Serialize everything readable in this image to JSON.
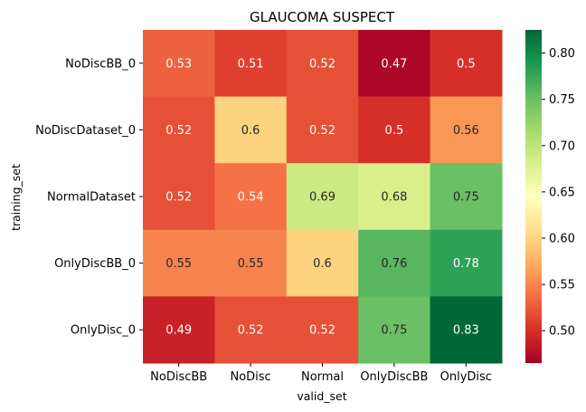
{
  "chart_data": {
    "type": "heatmap",
    "title": "GLAUCOMA SUSPECT",
    "xlabel": "valid_set",
    "ylabel": "training_set",
    "x_categories": [
      "NoDiscBB",
      "NoDisc",
      "Normal",
      "OnlyDiscBB",
      "OnlyDisc"
    ],
    "y_categories": [
      "NoDiscBB_0",
      "NoDiscDataset_0",
      "NormalDataset",
      "OnlyDiscBB_0",
      "OnlyDisc_0"
    ],
    "values": [
      [
        0.53,
        0.51,
        0.52,
        0.47,
        0.5
      ],
      [
        0.52,
        0.6,
        0.52,
        0.5,
        0.56
      ],
      [
        0.52,
        0.54,
        0.69,
        0.68,
        0.75
      ],
      [
        0.55,
        0.55,
        0.6,
        0.76,
        0.78
      ],
      [
        0.49,
        0.52,
        0.52,
        0.75,
        0.83
      ]
    ],
    "annotations": [
      [
        "0.53",
        "0.51",
        "0.52",
        "0.47",
        "0.5"
      ],
      [
        "0.52",
        "0.6",
        "0.52",
        "0.5",
        "0.56"
      ],
      [
        "0.52",
        "0.54",
        "0.69",
        "0.68",
        "0.75"
      ],
      [
        "0.55",
        "0.55",
        "0.6",
        "0.76",
        "0.78"
      ],
      [
        "0.49",
        "0.52",
        "0.52",
        "0.75",
        "0.83"
      ]
    ],
    "colormap": "RdYlGn",
    "colorbar": {
      "vmin": 0.465,
      "vmax": 0.825,
      "ticks": [
        0.5,
        0.55,
        0.6,
        0.65,
        0.7,
        0.75,
        0.8
      ],
      "tick_labels": [
        "0.50",
        "0.55",
        "0.60",
        "0.65",
        "0.70",
        "0.75",
        "0.80"
      ]
    }
  }
}
